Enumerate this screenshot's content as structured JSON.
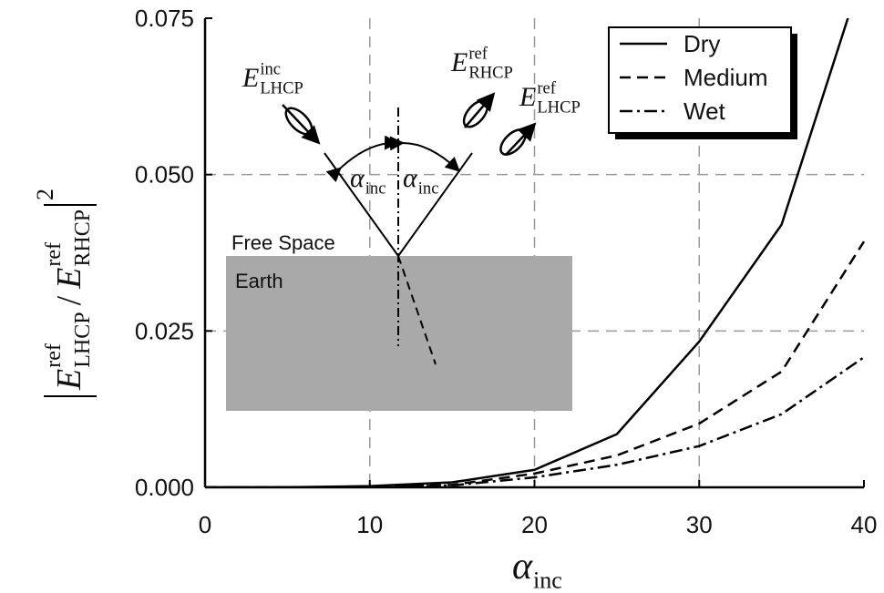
{
  "chart_data": {
    "type": "line",
    "x_label": {
      "base": "α",
      "sub": "inc"
    },
    "y_label": {
      "num_base": "E",
      "num_sup": "ref",
      "num_sub": "LHCP",
      "sep": "/",
      "den_base": "E",
      "den_sup": "ref",
      "den_sub": "RHCP",
      "power": "2"
    },
    "x": [
      0,
      5,
      10,
      15,
      20,
      25,
      30,
      35,
      40
    ],
    "series": [
      {
        "name": "Dry",
        "color": "#000000",
        "dash": "solid",
        "values": [
          0,
          1e-05,
          0.0002,
          0.0008,
          0.0028,
          0.0085,
          0.0233,
          0.042,
          0.083
        ]
      },
      {
        "name": "Medium",
        "color": "#000000",
        "dash": "dashed",
        "values": [
          0,
          1e-05,
          0.0001,
          0.0004,
          0.0022,
          0.0051,
          0.0102,
          0.0185,
          0.0393
        ]
      },
      {
        "name": "Wet",
        "color": "#000000",
        "dash": "dashdot",
        "values": [
          0,
          0,
          5e-05,
          0.0003,
          0.0016,
          0.0036,
          0.0066,
          0.0117,
          0.0208
        ]
      }
    ],
    "xlim": [
      0,
      40
    ],
    "ylim": [
      0,
      0.075
    ],
    "xticks": [
      0,
      10,
      20,
      30,
      40
    ],
    "yticks": [
      {
        "value": 0,
        "label": "0.000"
      },
      {
        "value": 0.025,
        "label": "0.025"
      },
      {
        "value": 0.05,
        "label": "0.050"
      },
      {
        "value": 0.075,
        "label": "0.075"
      }
    ],
    "grid": true,
    "legend": "upper right",
    "annotations": {
      "incident": {
        "base": "E",
        "sup": "inc",
        "sub": "LHCP"
      },
      "reflected_rhcp": {
        "base": "E",
        "sup": "ref",
        "sub": "RHCP"
      },
      "reflected_lhcp": {
        "base": "E",
        "sup": "ref",
        "sub": "LHCP"
      },
      "angle_left": {
        "base": "α",
        "sub": "inc"
      },
      "angle_right": {
        "base": "α",
        "sub": "inc"
      },
      "free_space": "Free Space",
      "earth": "Earth"
    }
  }
}
